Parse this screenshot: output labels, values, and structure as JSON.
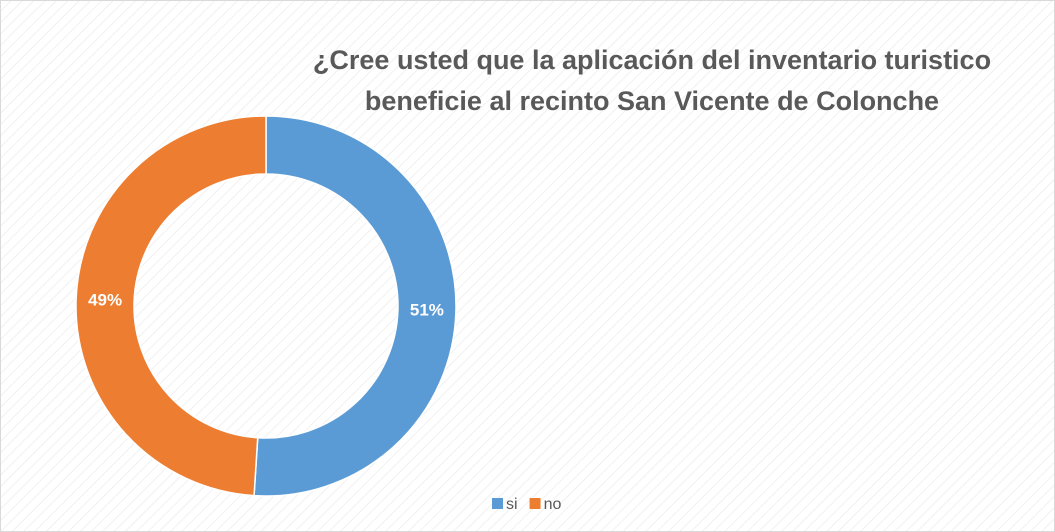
{
  "chart_data": {
    "type": "donut",
    "title": [
      "¿Cree usted que la aplicación del inventario turistico",
      "beneficie al recinto San Vicente de Colonche"
    ],
    "categories": [
      "si",
      "no"
    ],
    "values": [
      51,
      49
    ],
    "value_labels": [
      "51%",
      "49%"
    ],
    "colors": [
      "#5b9bd5",
      "#ed7d31"
    ],
    "legend": "bottom"
  }
}
